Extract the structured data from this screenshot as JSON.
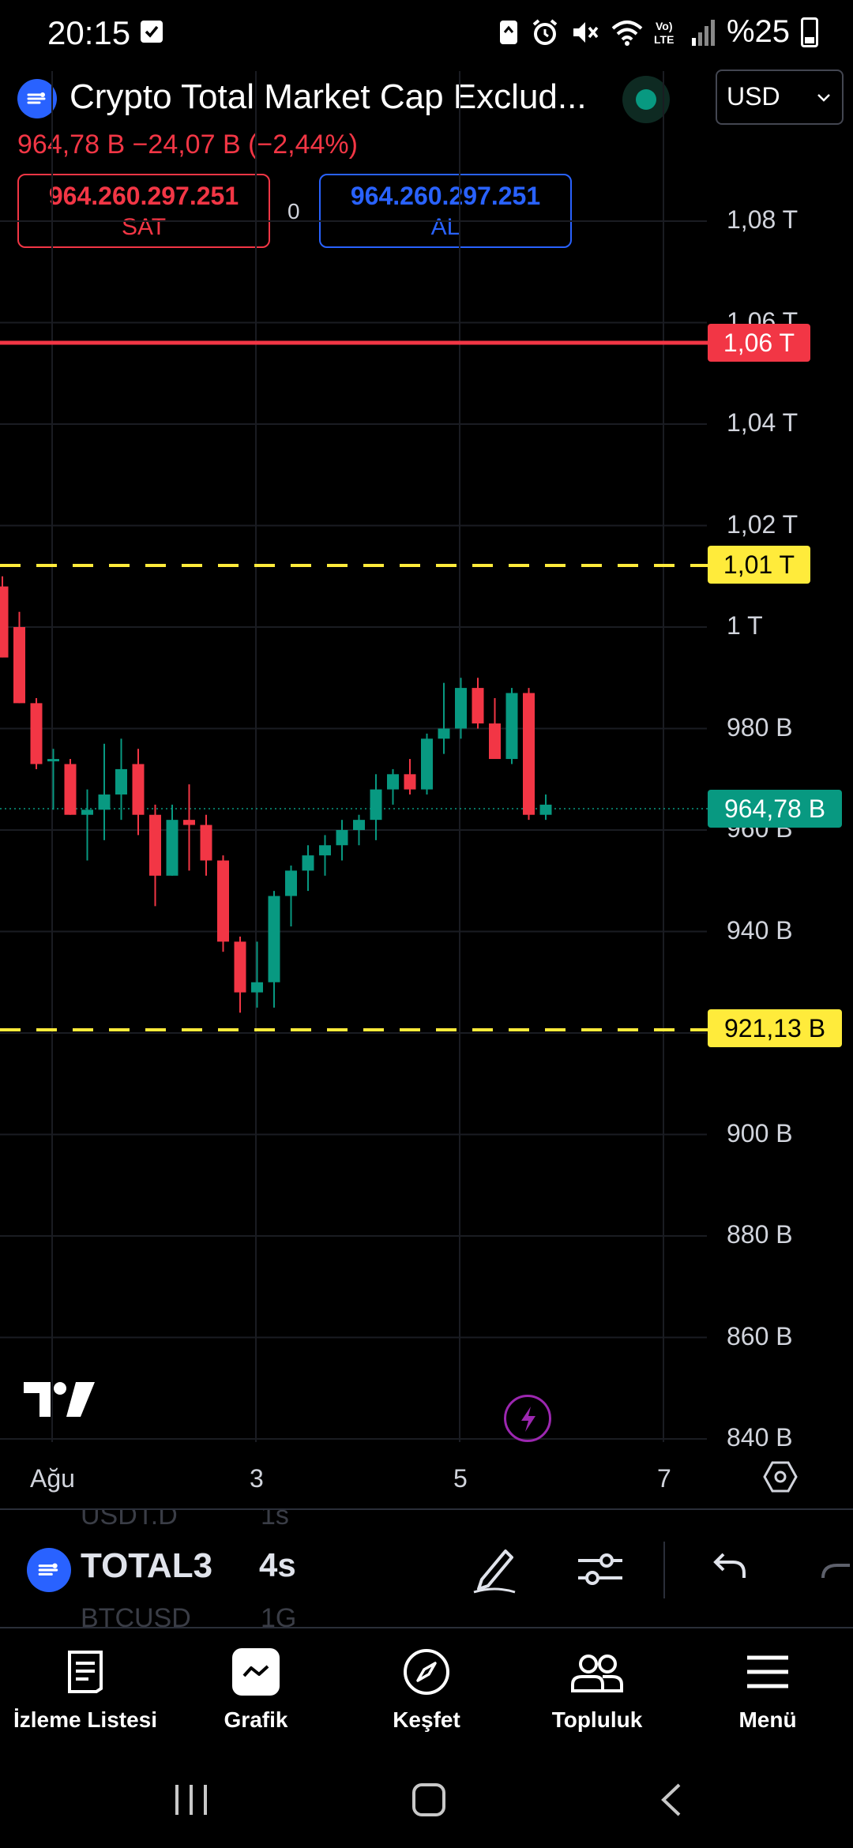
{
  "status_bar": {
    "time": "20:15",
    "battery": "%25"
  },
  "header": {
    "symbol_title": "Crypto Total Market Cap Exclud...",
    "currency": "USD",
    "price_change": "964,78 B  −24,07 B (−2,44%)",
    "sell_price": "964.260.297.251",
    "sell_label": "SAT",
    "spread": "0",
    "buy_price": "964.260.297.251",
    "buy_label": "AL"
  },
  "chart": {
    "price_axis": [
      "1,08 T",
      "1,06 T",
      "1,04 T",
      "1,02 T",
      "1 T",
      "980 B",
      "960 B",
      "940 B",
      "900 B",
      "880 B",
      "860 B",
      "840 B"
    ],
    "time_axis": [
      "Ağu",
      "3",
      "5",
      "7"
    ],
    "lines": {
      "red_level": "1,06 T",
      "yellow_upper": "1,01 T",
      "yellow_lower": "921,13 B",
      "current": "964,78 B"
    },
    "colors": {
      "up": "#089981",
      "down": "#f23645",
      "level": "#ffeb3b",
      "background": "#000000"
    }
  },
  "chart_data": {
    "type": "candlestick",
    "title": "Crypto Total Market Cap Exclud...",
    "unit": "B",
    "ylim": [
      835,
      1092
    ],
    "x_ticks": [
      "Ağu",
      "3",
      "5",
      "7"
    ],
    "candles": [
      {
        "o": 1008,
        "h": 1010,
        "l": 994,
        "c": 994
      },
      {
        "o": 1000,
        "h": 1003,
        "l": 985,
        "c": 985
      },
      {
        "o": 985,
        "h": 986,
        "l": 972,
        "c": 973
      },
      {
        "o": 974,
        "h": 976,
        "l": 964,
        "c": 974
      },
      {
        "o": 973,
        "h": 974,
        "l": 963,
        "c": 963
      },
      {
        "o": 963,
        "h": 968,
        "l": 954,
        "c": 964
      },
      {
        "o": 964,
        "h": 977,
        "l": 958,
        "c": 967
      },
      {
        "o": 967,
        "h": 978,
        "l": 962,
        "c": 972
      },
      {
        "o": 973,
        "h": 976,
        "l": 959,
        "c": 963
      },
      {
        "o": 963,
        "h": 965,
        "l": 945,
        "c": 951
      },
      {
        "o": 951,
        "h": 965,
        "l": 951,
        "c": 962
      },
      {
        "o": 962,
        "h": 969,
        "l": 952,
        "c": 961
      },
      {
        "o": 961,
        "h": 963,
        "l": 951,
        "c": 954
      },
      {
        "o": 954,
        "h": 955,
        "l": 936,
        "c": 938
      },
      {
        "o": 938,
        "h": 939,
        "l": 924,
        "c": 928
      },
      {
        "o": 928,
        "h": 938,
        "l": 925,
        "c": 930
      },
      {
        "o": 930,
        "h": 948,
        "l": 925,
        "c": 947
      },
      {
        "o": 947,
        "h": 953,
        "l": 941,
        "c": 952
      },
      {
        "o": 952,
        "h": 957,
        "l": 948,
        "c": 955
      },
      {
        "o": 955,
        "h": 959,
        "l": 951,
        "c": 957
      },
      {
        "o": 957,
        "h": 962,
        "l": 954,
        "c": 960
      },
      {
        "o": 960,
        "h": 963,
        "l": 957,
        "c": 962
      },
      {
        "o": 962,
        "h": 971,
        "l": 958,
        "c": 968
      },
      {
        "o": 968,
        "h": 972,
        "l": 965,
        "c": 971
      },
      {
        "o": 971,
        "h": 974,
        "l": 967,
        "c": 968
      },
      {
        "o": 968,
        "h": 979,
        "l": 967,
        "c": 978
      },
      {
        "o": 978,
        "h": 989,
        "l": 975,
        "c": 980
      },
      {
        "o": 980,
        "h": 990,
        "l": 978,
        "c": 988
      },
      {
        "o": 988,
        "h": 990,
        "l": 980,
        "c": 981
      },
      {
        "o": 981,
        "h": 986,
        "l": 976,
        "c": 974
      },
      {
        "o": 974,
        "h": 988,
        "l": 973,
        "c": 987
      },
      {
        "o": 987,
        "h": 988,
        "l": 962,
        "c": 963
      },
      {
        "o": 963,
        "h": 967,
        "l": 962,
        "c": 965
      }
    ]
  },
  "toolbar": {
    "symbol": "TOTAL3",
    "interval": "4s",
    "ghost_top_symbol": "USDT.D",
    "ghost_top_interval": "1s",
    "ghost_bottom_symbol": "BTCUSD",
    "ghost_bottom_interval": "1G"
  },
  "bottom_nav": {
    "items": [
      {
        "label": "İzleme Listesi",
        "icon": "watchlist-icon"
      },
      {
        "label": "Grafik",
        "icon": "chart-icon"
      },
      {
        "label": "Keşfet",
        "icon": "compass-icon"
      },
      {
        "label": "Topluluk",
        "icon": "community-icon"
      },
      {
        "label": "Menü",
        "icon": "menu-icon"
      }
    ]
  }
}
